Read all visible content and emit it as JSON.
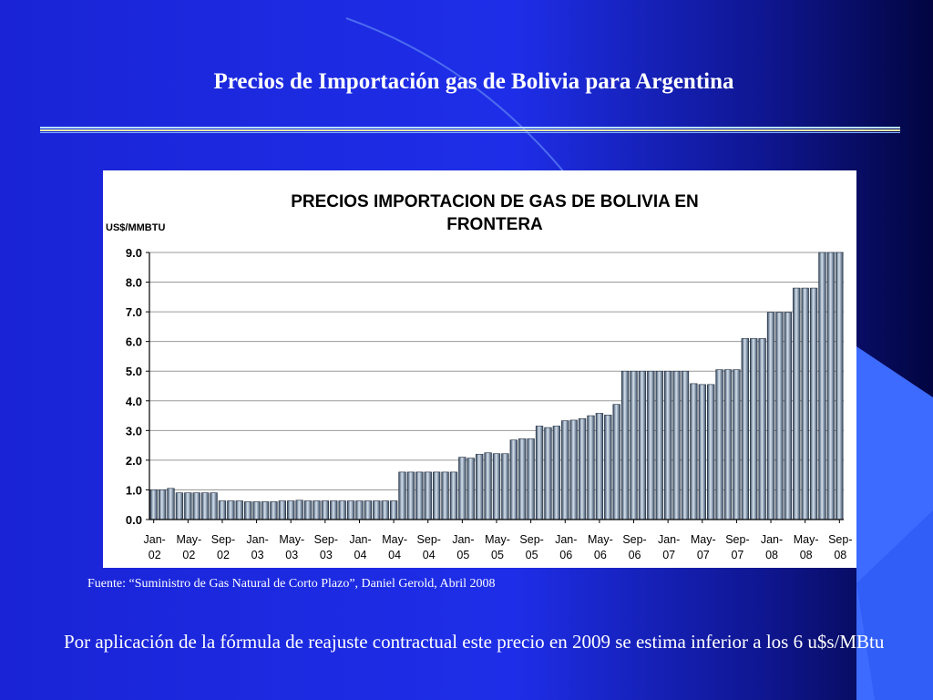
{
  "slide": {
    "title": "Precios de Importación gas de Bolivia para Argentina",
    "source": "Fuente: “Suministro de Gas Natural de Corto Plazo”, Daniel Gerold, Abril 2008",
    "note": "Por aplicación de la fórmula de reajuste contractual este precio en 2009 se estima inferior a los 6 u$s/MBtu",
    "colors": {
      "background": "#1e2ee8",
      "accent_shape": "#3d6bff",
      "bar_dark": "#3d5068",
      "bar_light": "#d6e2ee"
    }
  },
  "chart_data": {
    "type": "bar",
    "title_lines": [
      "PRECIOS IMPORTACION DE GAS DE BOLIVIA EN",
      "FRONTERA"
    ],
    "ylabel": "US$/MMBTU",
    "ylim": [
      0,
      9
    ],
    "yticks": [
      "0.0",
      "1.0",
      "2.0",
      "3.0",
      "4.0",
      "5.0",
      "6.0",
      "7.0",
      "8.0",
      "9.0"
    ],
    "grid": true,
    "legend": "none",
    "tick_labels": [
      {
        "top": "Jan-",
        "bottom": "02"
      },
      {
        "top": "May-",
        "bottom": "02"
      },
      {
        "top": "Sep-",
        "bottom": "02"
      },
      {
        "top": "Jan-",
        "bottom": "03"
      },
      {
        "top": "May-",
        "bottom": "03"
      },
      {
        "top": "Sep-",
        "bottom": "03"
      },
      {
        "top": "Jan-",
        "bottom": "04"
      },
      {
        "top": "May-",
        "bottom": "04"
      },
      {
        "top": "Sep-",
        "bottom": "04"
      },
      {
        "top": "Jan-",
        "bottom": "05"
      },
      {
        "top": "May-",
        "bottom": "05"
      },
      {
        "top": "Sep-",
        "bottom": "05"
      },
      {
        "top": "Jan-",
        "bottom": "06"
      },
      {
        "top": "May-",
        "bottom": "06"
      },
      {
        "top": "Sep-",
        "bottom": "06"
      },
      {
        "top": "Jan-",
        "bottom": "07"
      },
      {
        "top": "May-",
        "bottom": "07"
      },
      {
        "top": "Sep-",
        "bottom": "07"
      },
      {
        "top": "Jan-",
        "bottom": "08"
      },
      {
        "top": "May-",
        "bottom": "08"
      },
      {
        "top": "Sep-",
        "bottom": "08"
      }
    ],
    "values": [
      1.0,
      1.0,
      1.05,
      0.9,
      0.9,
      0.9,
      0.9,
      0.9,
      0.63,
      0.63,
      0.63,
      0.6,
      0.6,
      0.6,
      0.6,
      0.63,
      0.63,
      0.65,
      0.63,
      0.63,
      0.63,
      0.63,
      0.63,
      0.63,
      0.63,
      0.63,
      0.63,
      0.63,
      0.63,
      1.6,
      1.6,
      1.6,
      1.6,
      1.6,
      1.6,
      1.6,
      2.1,
      2.07,
      2.2,
      2.25,
      2.22,
      2.22,
      2.68,
      2.72,
      2.72,
      3.15,
      3.1,
      3.15,
      3.33,
      3.35,
      3.4,
      3.5,
      3.58,
      3.52,
      3.88,
      5.0,
      5.0,
      5.0,
      5.0,
      5.0,
      5.0,
      5.0,
      5.0,
      4.58,
      4.55,
      4.55,
      5.05,
      5.05,
      5.05,
      6.1,
      6.1,
      6.1,
      6.98,
      6.98,
      6.98,
      7.8,
      7.8,
      7.8,
      9.0,
      9.0,
      9.0
    ]
  }
}
